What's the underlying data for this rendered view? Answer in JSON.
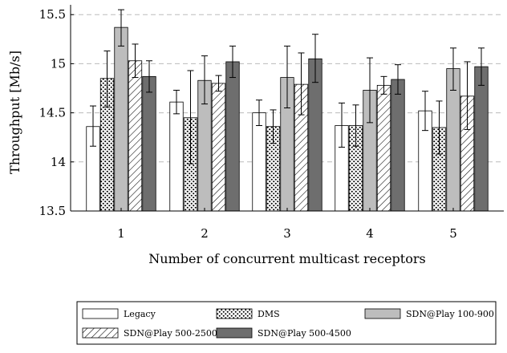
{
  "chart_data": {
    "type": "bar",
    "xlabel": "Number of concurrent multicast receptors",
    "ylabel": "Throughput [Mb/s]",
    "ylim": [
      13.5,
      15.6
    ],
    "yticks": [
      13.5,
      14,
      14.5,
      15,
      15.5
    ],
    "ytick_labels": [
      "13.5",
      "14",
      "14.5",
      "15",
      "15.5"
    ],
    "categories": [
      "1",
      "2",
      "3",
      "4",
      "5"
    ],
    "grid": "horizontal dashed",
    "legend_placement": "bottom",
    "series": [
      {
        "name": "Legacy",
        "pattern": "white",
        "values": [
          14.36,
          14.61,
          14.5,
          14.37,
          14.52
        ],
        "err_low": [
          14.16,
          14.49,
          14.37,
          14.15,
          14.32
        ],
        "err_high": [
          14.57,
          14.73,
          14.63,
          14.6,
          14.72
        ]
      },
      {
        "name": "DMS",
        "pattern": "dots",
        "values": [
          14.85,
          14.45,
          14.36,
          14.37,
          14.35
        ],
        "err_low": [
          14.56,
          13.98,
          14.19,
          14.16,
          14.08
        ],
        "err_high": [
          15.13,
          14.93,
          14.53,
          14.58,
          14.62
        ]
      },
      {
        "name": "SDN@Play 100-900",
        "pattern": "lightgray",
        "values": [
          15.37,
          14.83,
          14.86,
          14.73,
          14.95
        ],
        "err_low": [
          15.18,
          14.59,
          14.55,
          14.4,
          14.73
        ],
        "err_high": [
          15.55,
          15.08,
          15.18,
          15.06,
          15.16
        ]
      },
      {
        "name": "SDN@Play 500-2500",
        "pattern": "hatch",
        "values": [
          15.03,
          14.8,
          14.79,
          14.78,
          14.67
        ],
        "err_low": [
          14.86,
          14.72,
          14.48,
          14.69,
          14.33
        ],
        "err_high": [
          15.2,
          14.88,
          15.11,
          14.87,
          15.02
        ]
      },
      {
        "name": "SDN@Play 500-4500",
        "pattern": "darkgray",
        "values": [
          14.87,
          15.02,
          15.05,
          14.84,
          14.97
        ],
        "err_low": [
          14.71,
          14.86,
          14.81,
          14.69,
          14.78
        ],
        "err_high": [
          15.03,
          15.18,
          15.3,
          14.99,
          15.16
        ]
      }
    ],
    "colors": {
      "legacy": "#ffffff",
      "sdn_100_900": "#bdbdbd",
      "sdn_500_4500": "#6e6e6e",
      "stroke": "#000000",
      "grid": "#bbbbbb"
    }
  }
}
